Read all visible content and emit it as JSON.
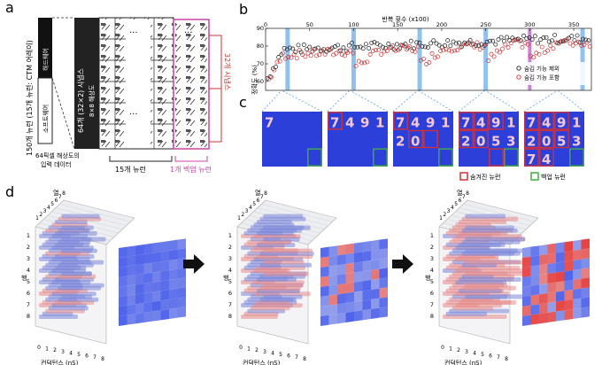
{
  "panel_labels": {
    "a": "a",
    "b": "b",
    "c": "c",
    "d": "d"
  },
  "panel_a": {
    "vertical_label": "150개 뉴런 (15개 뉴런: CTM 어레이)",
    "hardware_label": "하드웨어",
    "software_label": "소프트웨어",
    "input_label_line1": "64픽셀 해상도의",
    "input_label_line2": "입력 데이터",
    "synapse_label": "64개 (32×2) 시냅스",
    "resolution_label": "8×8 해상도",
    "ellipsis": "···",
    "neurons_label": "15개 뉴런",
    "backup_label": "1개 백업 뉴런",
    "synapse_count_label": "32개 시냅스",
    "colors": {
      "backup": "#cc44aa",
      "synapse": "#cc3333"
    }
  },
  "panel_b": {
    "chart_data": {
      "type": "scatter",
      "title": "반복 횟수 (x100)",
      "xlabel": "반복 횟수 (x100)",
      "ylabel": "정확도 (%)",
      "xlim": [
        0,
        370
      ],
      "ylim": [
        55,
        90
      ],
      "x_ticks": [
        0,
        50,
        100,
        150,
        200,
        250,
        300,
        350
      ],
      "y_ticks": [
        60,
        70,
        80,
        90
      ],
      "highlight_x": [
        25,
        100,
        175,
        250,
        360
      ],
      "event_x": 300,
      "series": [
        {
          "name": "숨김 기능 제외",
          "color": "#222222",
          "description": "rises from ~60 to ~78 by x=20, stays ~78-85, ends ~84-86"
        },
        {
          "name": "숨김 기능 포함",
          "color": "#cc3333",
          "description": "rises to ~77, drops to ~67 after each highlight (x=100,175,250,300) and recovers, ends ~82-85"
        }
      ],
      "legend": [
        "숨김 기능 제외",
        "숨김 기능 포함"
      ]
    }
  },
  "panel_c": {
    "legend_hidden": "숨겨진 뉴런",
    "legend_backup": "백업 뉴런",
    "colors": {
      "hidden": "#d0303a",
      "backup": "#40b040"
    }
  },
  "panel_d": {
    "row_axis_label": "행",
    "col_axis_label": "열",
    "conductance_label": "컨덕턴스 (nS)",
    "row_ticks": [
      "1",
      "2",
      "3",
      "4",
      "5",
      "6",
      "7",
      "8"
    ],
    "col_ticks": [
      "1",
      "2",
      "3",
      "4",
      "5",
      "6",
      "7",
      "8"
    ],
    "cond_ticks": [
      "0",
      "1",
      "2",
      "3",
      "4",
      "5",
      "6",
      "7",
      "8"
    ]
  }
}
